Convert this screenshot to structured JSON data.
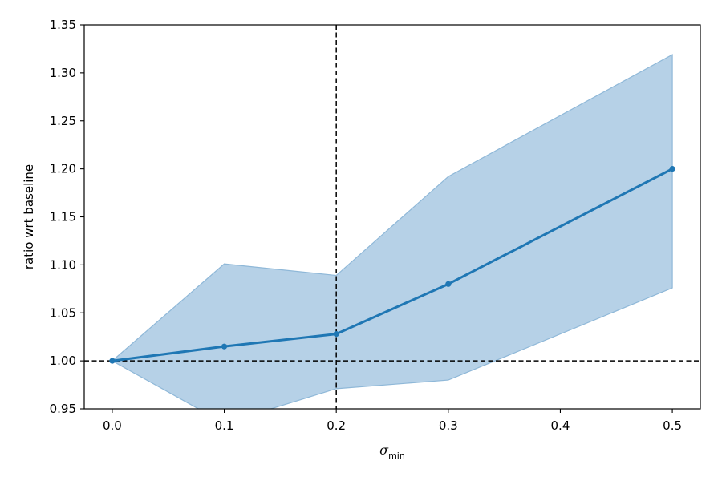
{
  "chart_data": {
    "type": "line",
    "title": "",
    "xlabel": {
      "symbol": "σ",
      "subscript": "min"
    },
    "ylabel": "ratio wrt baseline",
    "xlim": [
      -0.025,
      0.525
    ],
    "ylim": [
      0.95,
      1.35
    ],
    "x_ticks": [
      0.0,
      0.1,
      0.2,
      0.3,
      0.4,
      0.5
    ],
    "x_tick_labels": [
      "0.0",
      "0.1",
      "0.2",
      "0.3",
      "0.4",
      "0.5"
    ],
    "y_ticks": [
      0.95,
      1.0,
      1.05,
      1.1,
      1.15,
      1.2,
      1.25,
      1.3,
      1.35
    ],
    "y_tick_labels": [
      "0.95",
      "1.00",
      "1.05",
      "1.10",
      "1.15",
      "1.20",
      "1.25",
      "1.30",
      "1.35"
    ],
    "grid": false,
    "series": [
      {
        "x": [
          0.0,
          0.1,
          0.2,
          0.3,
          0.5
        ],
        "y": [
          1.0,
          1.015,
          1.028,
          1.08,
          1.2
        ],
        "lower": [
          1.0,
          0.935,
          0.971,
          0.98,
          1.076
        ],
        "upper": [
          1.0,
          1.101,
          1.089,
          1.192,
          1.319
        ],
        "color": "#1f77b4",
        "band_color": "#b6d1e7",
        "band_edge_color": "#8fb8d8"
      }
    ],
    "reference_lines": [
      {
        "orientation": "horizontal",
        "value": 1.0,
        "style": "dashed",
        "color": "#000000"
      },
      {
        "orientation": "vertical",
        "value": 0.2,
        "style": "dashed",
        "color": "#000000"
      }
    ]
  }
}
